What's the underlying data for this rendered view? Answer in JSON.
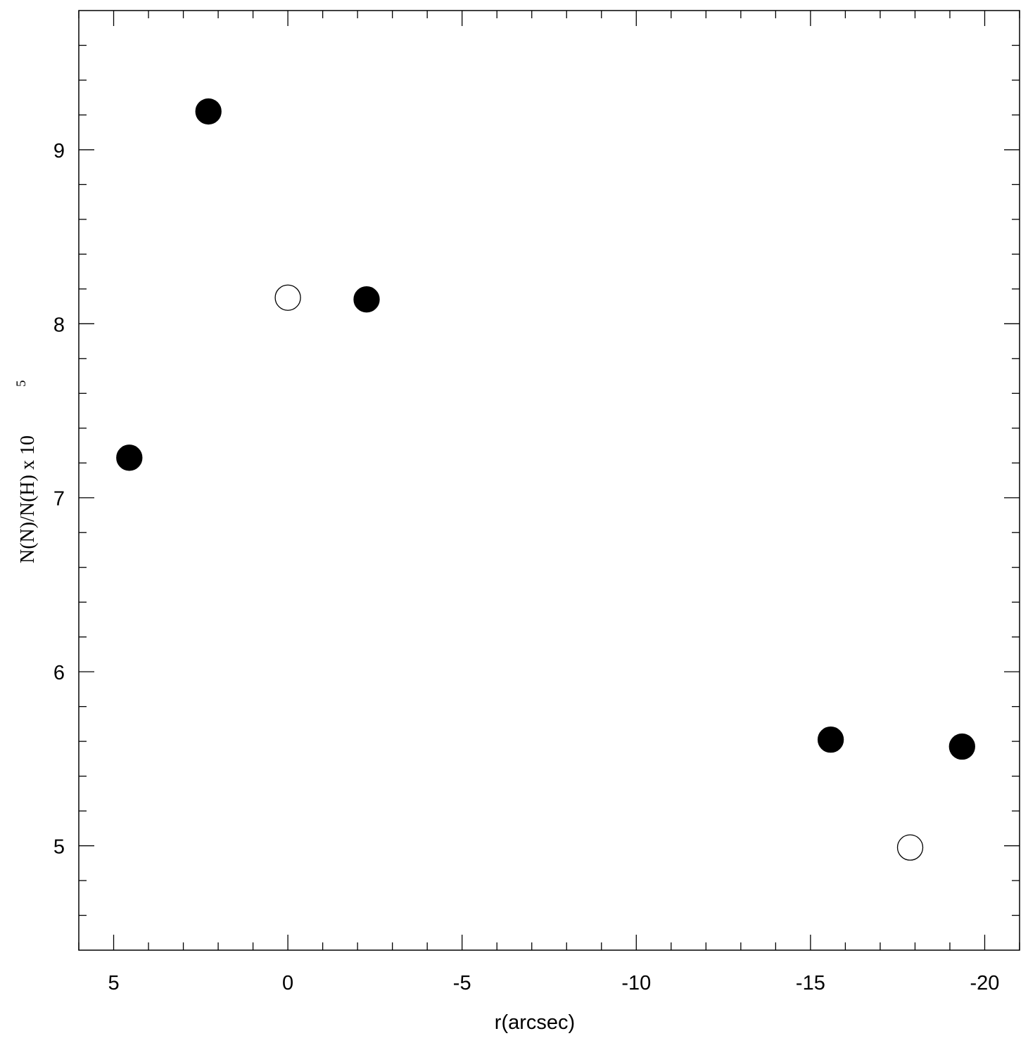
{
  "chart_data": {
    "type": "scatter",
    "x_label": "r(arcsec)",
    "y_label": "N(N)/N(H)  x  10",
    "y_label_exponent": "5",
    "xlim": [
      6,
      -21
    ],
    "ylim": [
      4.4,
      9.8
    ],
    "xticks": [
      5,
      0,
      -5,
      -10,
      -15,
      -20
    ],
    "yticks": [
      5,
      6,
      7,
      8,
      9
    ],
    "x_minor_ticks": [
      6,
      4,
      3,
      2,
      1,
      -1,
      -2,
      -3,
      -4,
      -6,
      -7,
      -8,
      -9,
      -11,
      -12,
      -13,
      -14,
      -16,
      -17,
      -18,
      -19,
      -21
    ],
    "y_minor_ticks": [
      4.6,
      4.8,
      5.2,
      5.4,
      5.6,
      5.8,
      6.2,
      6.4,
      6.6,
      6.8,
      7.2,
      7.4,
      7.6,
      7.8,
      8.2,
      8.4,
      8.6,
      8.8,
      9.2,
      9.4,
      9.6
    ],
    "series": [
      {
        "marker": "filled",
        "color": "#000000",
        "x": [
          4.55,
          2.28,
          -2.26,
          -15.58,
          -19.35
        ],
        "values": [
          7.23,
          9.22,
          8.14,
          5.61,
          5.57
        ]
      },
      {
        "marker": "open",
        "color": "#000000",
        "x": [
          0,
          -17.86
        ],
        "values": [
          8.15,
          4.99
        ]
      }
    ]
  }
}
